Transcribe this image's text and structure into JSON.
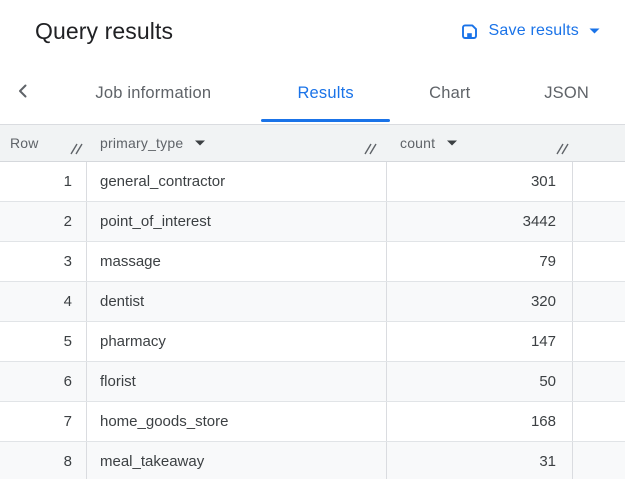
{
  "header": {
    "title": "Query results",
    "save_button": {
      "label": "Save results"
    }
  },
  "tab_bar": {
    "tabs": [
      {
        "label": "Job information",
        "active": false
      },
      {
        "label": "Results",
        "active": true
      },
      {
        "label": "Chart",
        "active": false
      },
      {
        "label": "JSON",
        "active": false
      }
    ]
  },
  "results_table": {
    "columns": [
      {
        "label": "Row",
        "sortable": false,
        "resizable": true
      },
      {
        "label": "primary_type",
        "sortable": true,
        "resizable": true
      },
      {
        "label": "count",
        "sortable": true,
        "resizable": true
      }
    ],
    "rows": [
      {
        "row": "1",
        "primary_type": "general_contractor",
        "count": "301"
      },
      {
        "row": "2",
        "primary_type": "point_of_interest",
        "count": "3442"
      },
      {
        "row": "3",
        "primary_type": "massage",
        "count": "79"
      },
      {
        "row": "4",
        "primary_type": "dentist",
        "count": "320"
      },
      {
        "row": "5",
        "primary_type": "pharmacy",
        "count": "147"
      },
      {
        "row": "6",
        "primary_type": "florist",
        "count": "50"
      },
      {
        "row": "7",
        "primary_type": "home_goods_store",
        "count": "168"
      },
      {
        "row": "8",
        "primary_type": "meal_takeaway",
        "count": "31"
      }
    ]
  },
  "colors": {
    "accent_blue": "#1a73e8",
    "title_text": "#202124",
    "muted_text": "#5f6368",
    "cell_text": "#3c4043",
    "header_background": "#f1f3f4",
    "stripe_background": "#f8f9fa",
    "border": "#dadce0"
  }
}
